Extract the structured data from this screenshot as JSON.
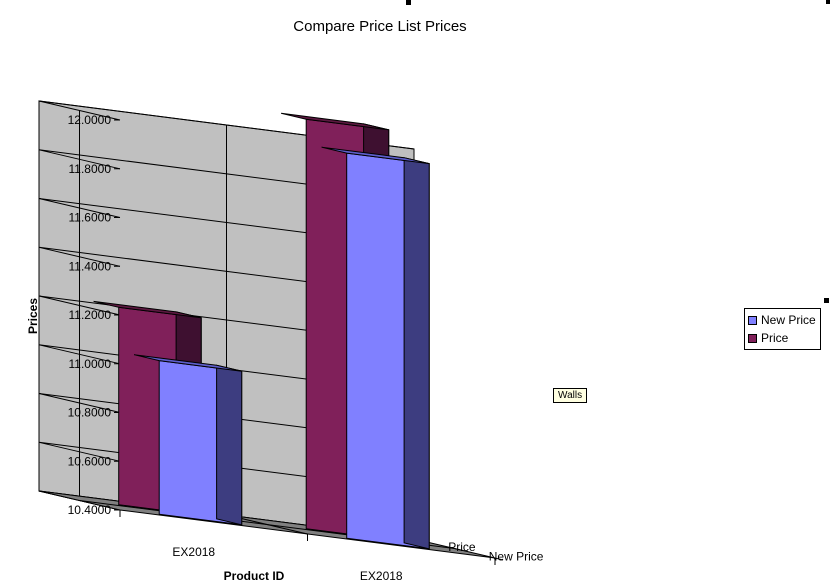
{
  "chart_data": {
    "type": "bar",
    "subtype": "3d-clustered-column",
    "title": "Compare Price List Prices",
    "xlabel": "Product ID",
    "ylabel": "Prices",
    "categories": [
      "EX2018",
      "EX2018"
    ],
    "depth_labels": [
      "New Price",
      "Price"
    ],
    "series": [
      {
        "name": "New Price",
        "values": [
          11.03,
          11.98
        ],
        "color": "#8080FF",
        "side_color": "#3D3D80",
        "top_color": "#5E5ECC"
      },
      {
        "name": "Price",
        "values": [
          11.21,
          12.08
        ],
        "color": "#80205A",
        "side_color": "#3E1030",
        "top_color": "#5C1840"
      }
    ],
    "y_ticks": [
      "10.4000",
      "10.6000",
      "10.8000",
      "11.0000",
      "11.2000",
      "11.4000",
      "11.6000",
      "11.8000",
      "12.0000"
    ],
    "ylim": [
      10.4,
      12.0
    ],
    "grid": true,
    "legend_position": "right",
    "colors": {
      "wall": "#C0C0C0",
      "floor": "#808080",
      "background": "#FFFFFF"
    }
  },
  "tooltip": {
    "text": "Walls"
  }
}
